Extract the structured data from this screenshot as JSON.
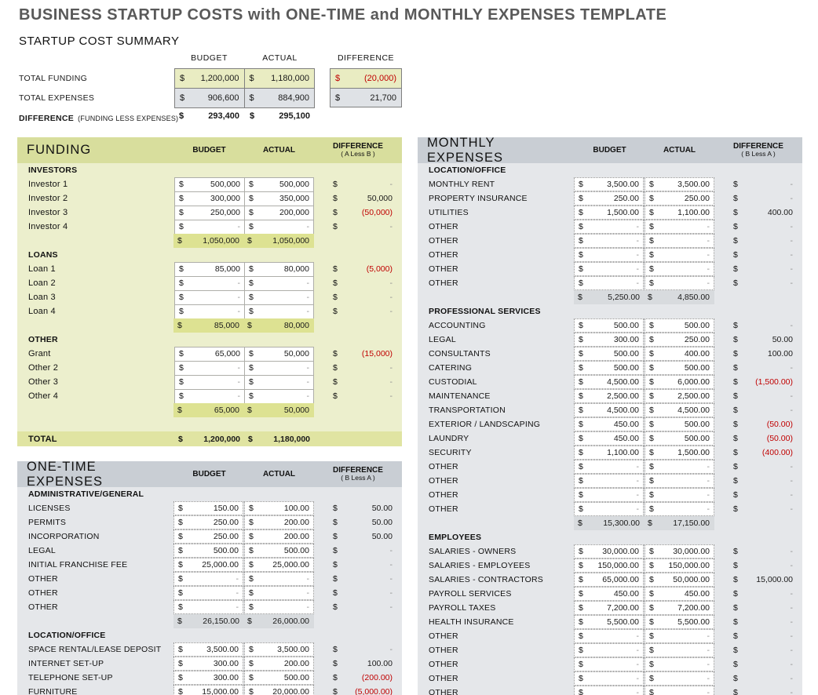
{
  "title": "BUSINESS STARTUP COSTS with ONE-TIME and MONTHLY EXPENSES TEMPLATE",
  "colors": {
    "title_text": "#595959",
    "accent_green_header": "#d8de9d",
    "accent_green_body": "#ecefcd",
    "accent_green_subtotal": "#dde292",
    "accent_green_total": "#e0e4a2",
    "accent_gray_header": "#c9ced4",
    "accent_gray_body": "#e5e7ea",
    "accent_gray_subtotal": "#d8dbde",
    "summary_yellow_cell": "#e9ecc2",
    "summary_gray_cell": "#dfe2e6",
    "negative_red": "#c00000"
  },
  "summary": {
    "heading": "STARTUP COST SUMMARY",
    "col_budget": "BUDGET",
    "col_actual": "ACTUAL",
    "col_difference": "DIFFERENCE",
    "rows": [
      {
        "label": "TOTAL FUNDING",
        "budget": "1,200,000",
        "actual": "1,180,000",
        "diff": "(20,000)",
        "diff_negative": true
      },
      {
        "label": "TOTAL EXPENSES",
        "budget": "906,600",
        "actual": "884,900",
        "diff": "21,700",
        "diff_negative": false
      }
    ],
    "difference_row": {
      "label": "DIFFERENCE",
      "sublabel": "(FUNDING LESS EXPENSES)",
      "budget": "293,400",
      "actual": "295,100"
    },
    "currency": "$"
  },
  "tables": {
    "funding": {
      "title": "FUNDING",
      "col_budget": "BUDGET",
      "col_actual": "ACTUAL",
      "col_difference": "DIFFERENCE",
      "col_difference_sub": "( A Less B )",
      "style": "green",
      "rows": [
        {
          "t": "section",
          "label": "INVESTORS"
        },
        {
          "t": "item",
          "label": "Investor 1",
          "budget": "500,000",
          "actual": "500,000",
          "diff": "-",
          "neg": false
        },
        {
          "t": "item",
          "label": "Investor 2",
          "budget": "300,000",
          "actual": "350,000",
          "diff": "50,000",
          "neg": false
        },
        {
          "t": "item",
          "label": "Investor 3",
          "budget": "250,000",
          "actual": "200,000",
          "diff": "(50,000)",
          "neg": true
        },
        {
          "t": "item",
          "label": "Investor 4",
          "budget": "-",
          "actual": "-",
          "diff": "-",
          "neg": false
        },
        {
          "t": "subtotal",
          "budget": "1,050,000",
          "actual": "1,050,000"
        },
        {
          "t": "section",
          "label": "LOANS"
        },
        {
          "t": "item",
          "label": "Loan 1",
          "budget": "85,000",
          "actual": "80,000",
          "diff": "(5,000)",
          "neg": true
        },
        {
          "t": "item",
          "label": "Loan 2",
          "budget": "-",
          "actual": "-",
          "diff": "-",
          "neg": false
        },
        {
          "t": "item",
          "label": "Loan 3",
          "budget": "-",
          "actual": "-",
          "diff": "-",
          "neg": false
        },
        {
          "t": "item",
          "label": "Loan 4",
          "budget": "-",
          "actual": "-",
          "diff": "-",
          "neg": false
        },
        {
          "t": "subtotal",
          "budget": "85,000",
          "actual": "80,000"
        },
        {
          "t": "section",
          "label": "OTHER"
        },
        {
          "t": "item",
          "label": "Grant",
          "budget": "65,000",
          "actual": "50,000",
          "diff": "(15,000)",
          "neg": true
        },
        {
          "t": "item",
          "label": "Other 2",
          "budget": "-",
          "actual": "-",
          "diff": "-",
          "neg": false
        },
        {
          "t": "item",
          "label": "Other 3",
          "budget": "-",
          "actual": "-",
          "diff": "-",
          "neg": false
        },
        {
          "t": "item",
          "label": "Other 4",
          "budget": "-",
          "actual": "-",
          "diff": "-",
          "neg": false
        },
        {
          "t": "subtotal",
          "budget": "65,000",
          "actual": "50,000"
        },
        {
          "t": "total",
          "label": "TOTAL",
          "budget": "1,200,000",
          "actual": "1,180,000"
        }
      ]
    },
    "onetime": {
      "title": "ONE-TIME EXPENSES",
      "col_budget": "BUDGET",
      "col_actual": "ACTUAL",
      "col_difference": "DIFFERENCE",
      "col_difference_sub": "( B Less A )",
      "style": "gray",
      "rows": [
        {
          "t": "section",
          "label": "ADMINISTRATIVE/GENERAL"
        },
        {
          "t": "item",
          "label": "LICENSES",
          "budget": "150.00",
          "actual": "100.00",
          "diff": "50.00",
          "neg": false
        },
        {
          "t": "item",
          "label": "PERMITS",
          "budget": "250.00",
          "actual": "200.00",
          "diff": "50.00",
          "neg": false
        },
        {
          "t": "item",
          "label": "INCORPORATION",
          "budget": "250.00",
          "actual": "200.00",
          "diff": "50.00",
          "neg": false
        },
        {
          "t": "item",
          "label": "LEGAL",
          "budget": "500.00",
          "actual": "500.00",
          "diff": "-",
          "neg": false
        },
        {
          "t": "item",
          "label": "INITIAL FRANCHISE FEE",
          "budget": "25,000.00",
          "actual": "25,000.00",
          "diff": "-",
          "neg": false
        },
        {
          "t": "item",
          "label": "OTHER",
          "budget": "-",
          "actual": "-",
          "diff": "-",
          "neg": false
        },
        {
          "t": "item",
          "label": "OTHER",
          "budget": "-",
          "actual": "-",
          "diff": "-",
          "neg": false
        },
        {
          "t": "item",
          "label": "OTHER",
          "budget": "-",
          "actual": "-",
          "diff": "-",
          "neg": false
        },
        {
          "t": "subtotal",
          "budget": "26,150.00",
          "actual": "26,000.00"
        },
        {
          "t": "section",
          "label": "LOCATION/OFFICE"
        },
        {
          "t": "item",
          "label": "SPACE RENTAL/LEASE DEPOSIT",
          "budget": "3,500.00",
          "actual": "3,500.00",
          "diff": "-",
          "neg": false
        },
        {
          "t": "item",
          "label": "INTERNET SET-UP",
          "budget": "300.00",
          "actual": "200.00",
          "diff": "100.00",
          "neg": false
        },
        {
          "t": "item",
          "label": "TELEPHONE SET-UP",
          "budget": "300.00",
          "actual": "500.00",
          "diff": "(200.00)",
          "neg": true
        },
        {
          "t": "item",
          "label": "FURNITURE",
          "budget": "15,000.00",
          "actual": "20,000.00",
          "diff": "(5,000.00)",
          "neg": true
        }
      ]
    },
    "monthly": {
      "title": "MONTHLY EXPENSES",
      "col_budget": "BUDGET",
      "col_actual": "ACTUAL",
      "col_difference": "DIFFERENCE",
      "col_difference_sub": "( B Less A )",
      "style": "gray",
      "rows": [
        {
          "t": "section",
          "label": "LOCATION/OFFICE"
        },
        {
          "t": "item",
          "label": "MONTHLY RENT",
          "budget": "3,500.00",
          "actual": "3,500.00",
          "diff": "-",
          "neg": false
        },
        {
          "t": "item",
          "label": "PROPERTY INSURANCE",
          "budget": "250.00",
          "actual": "250.00",
          "diff": "-",
          "neg": false
        },
        {
          "t": "item",
          "label": "UTILITIES",
          "budget": "1,500.00",
          "actual": "1,100.00",
          "diff": "400.00",
          "neg": false
        },
        {
          "t": "item",
          "label": "OTHER",
          "budget": "-",
          "actual": "-",
          "diff": "-",
          "neg": false
        },
        {
          "t": "item",
          "label": "OTHER",
          "budget": "-",
          "actual": "-",
          "diff": "-",
          "neg": false
        },
        {
          "t": "item",
          "label": "OTHER",
          "budget": "-",
          "actual": "-",
          "diff": "-",
          "neg": false
        },
        {
          "t": "item",
          "label": "OTHER",
          "budget": "-",
          "actual": "-",
          "diff": "-",
          "neg": false
        },
        {
          "t": "item",
          "label": "OTHER",
          "budget": "-",
          "actual": "-",
          "diff": "-",
          "neg": false
        },
        {
          "t": "subtotal",
          "budget": "5,250.00",
          "actual": "4,850.00"
        },
        {
          "t": "section",
          "label": "PROFESSIONAL SERVICES"
        },
        {
          "t": "item",
          "label": "ACCOUNTING",
          "budget": "500.00",
          "actual": "500.00",
          "diff": "-",
          "neg": false
        },
        {
          "t": "item",
          "label": "LEGAL",
          "budget": "300.00",
          "actual": "250.00",
          "diff": "50.00",
          "neg": false
        },
        {
          "t": "item",
          "label": "CONSULTANTS",
          "budget": "500.00",
          "actual": "400.00",
          "diff": "100.00",
          "neg": false
        },
        {
          "t": "item",
          "label": "CATERING",
          "budget": "500.00",
          "actual": "500.00",
          "diff": "-",
          "neg": false
        },
        {
          "t": "item",
          "label": "CUSTODIAL",
          "budget": "4,500.00",
          "actual": "6,000.00",
          "diff": "(1,500.00)",
          "neg": true
        },
        {
          "t": "item",
          "label": "MAINTENANCE",
          "budget": "2,500.00",
          "actual": "2,500.00",
          "diff": "-",
          "neg": false
        },
        {
          "t": "item",
          "label": "TRANSPORTATION",
          "budget": "4,500.00",
          "actual": "4,500.00",
          "diff": "-",
          "neg": false
        },
        {
          "t": "item",
          "label": "EXTERIOR / LANDSCAPING",
          "budget": "450.00",
          "actual": "500.00",
          "diff": "(50.00)",
          "neg": true
        },
        {
          "t": "item",
          "label": "LAUNDRY",
          "budget": "450.00",
          "actual": "500.00",
          "diff": "(50.00)",
          "neg": true
        },
        {
          "t": "item",
          "label": "SECURITY",
          "budget": "1,100.00",
          "actual": "1,500.00",
          "diff": "(400.00)",
          "neg": true
        },
        {
          "t": "item",
          "label": "OTHER",
          "budget": "-",
          "actual": "-",
          "diff": "-",
          "neg": false
        },
        {
          "t": "item",
          "label": "OTHER",
          "budget": "-",
          "actual": "-",
          "diff": "-",
          "neg": false
        },
        {
          "t": "item",
          "label": "OTHER",
          "budget": "-",
          "actual": "-",
          "diff": "-",
          "neg": false
        },
        {
          "t": "item",
          "label": "OTHER",
          "budget": "-",
          "actual": "-",
          "diff": "-",
          "neg": false
        },
        {
          "t": "subtotal",
          "budget": "15,300.00",
          "actual": "17,150.00"
        },
        {
          "t": "section",
          "label": "EMPLOYEES"
        },
        {
          "t": "item",
          "label": "SALARIES - OWNERS",
          "budget": "30,000.00",
          "actual": "30,000.00",
          "diff": "-",
          "neg": false
        },
        {
          "t": "item",
          "label": "SALARIES - EMPLOYEES",
          "budget": "150,000.00",
          "actual": "150,000.00",
          "diff": "-",
          "neg": false
        },
        {
          "t": "item",
          "label": "SALARIES - CONTRACTORS",
          "budget": "65,000.00",
          "actual": "50,000.00",
          "diff": "15,000.00",
          "neg": false
        },
        {
          "t": "item",
          "label": "PAYROLL SERVICES",
          "budget": "450.00",
          "actual": "450.00",
          "diff": "-",
          "neg": false
        },
        {
          "t": "item",
          "label": "PAYROLL TAXES",
          "budget": "7,200.00",
          "actual": "7,200.00",
          "diff": "-",
          "neg": false
        },
        {
          "t": "item",
          "label": "HEALTH INSURANCE",
          "budget": "5,500.00",
          "actual": "5,500.00",
          "diff": "-",
          "neg": false
        },
        {
          "t": "item",
          "label": "OTHER",
          "budget": "-",
          "actual": "-",
          "diff": "-",
          "neg": false
        },
        {
          "t": "item",
          "label": "OTHER",
          "budget": "-",
          "actual": "-",
          "diff": "-",
          "neg": false
        },
        {
          "t": "item",
          "label": "OTHER",
          "budget": "-",
          "actual": "-",
          "diff": "-",
          "neg": false
        },
        {
          "t": "item",
          "label": "OTHER",
          "budget": "-",
          "actual": "-",
          "diff": "-",
          "neg": false
        },
        {
          "t": "item",
          "label": "OTHER",
          "budget": "-",
          "actual": "-",
          "diff": "-",
          "neg": false
        }
      ]
    }
  }
}
